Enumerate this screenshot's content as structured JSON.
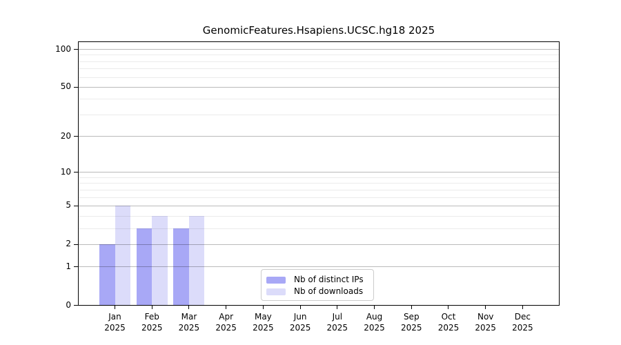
{
  "chart_data": {
    "type": "bar",
    "title": "GenomicFeatures.Hsapiens.UCSC.hg18 2025",
    "categories": [
      "Jan",
      "Feb",
      "Mar",
      "Apr",
      "May",
      "Jun",
      "Jul",
      "Aug",
      "Sep",
      "Oct",
      "Nov",
      "Dec"
    ],
    "year_label": "2025",
    "series": [
      {
        "name": "Nb of distinct IPs",
        "color": "#a8a8f6",
        "values": [
          2,
          3,
          3,
          0,
          0,
          0,
          0,
          0,
          0,
          0,
          0,
          0
        ]
      },
      {
        "name": "Nb of downloads",
        "color": "#dcdcfa",
        "values": [
          5,
          4,
          4,
          0,
          0,
          0,
          0,
          0,
          0,
          0,
          0,
          0
        ]
      }
    ],
    "xlabel": "",
    "ylabel": "",
    "yscale": "log1p",
    "ylim": [
      0,
      114
    ],
    "yticks": [
      0,
      1,
      2,
      5,
      10,
      20,
      50,
      100
    ],
    "yticks_minor": [
      3,
      4,
      6,
      7,
      8,
      9,
      30,
      40,
      60,
      70,
      80,
      90
    ],
    "grid": "horizontal",
    "legend_position": "bottom-center-inside"
  },
  "colors": {
    "background": "#ffffff",
    "spine": "#000000",
    "legend_border": "#cccccc"
  }
}
